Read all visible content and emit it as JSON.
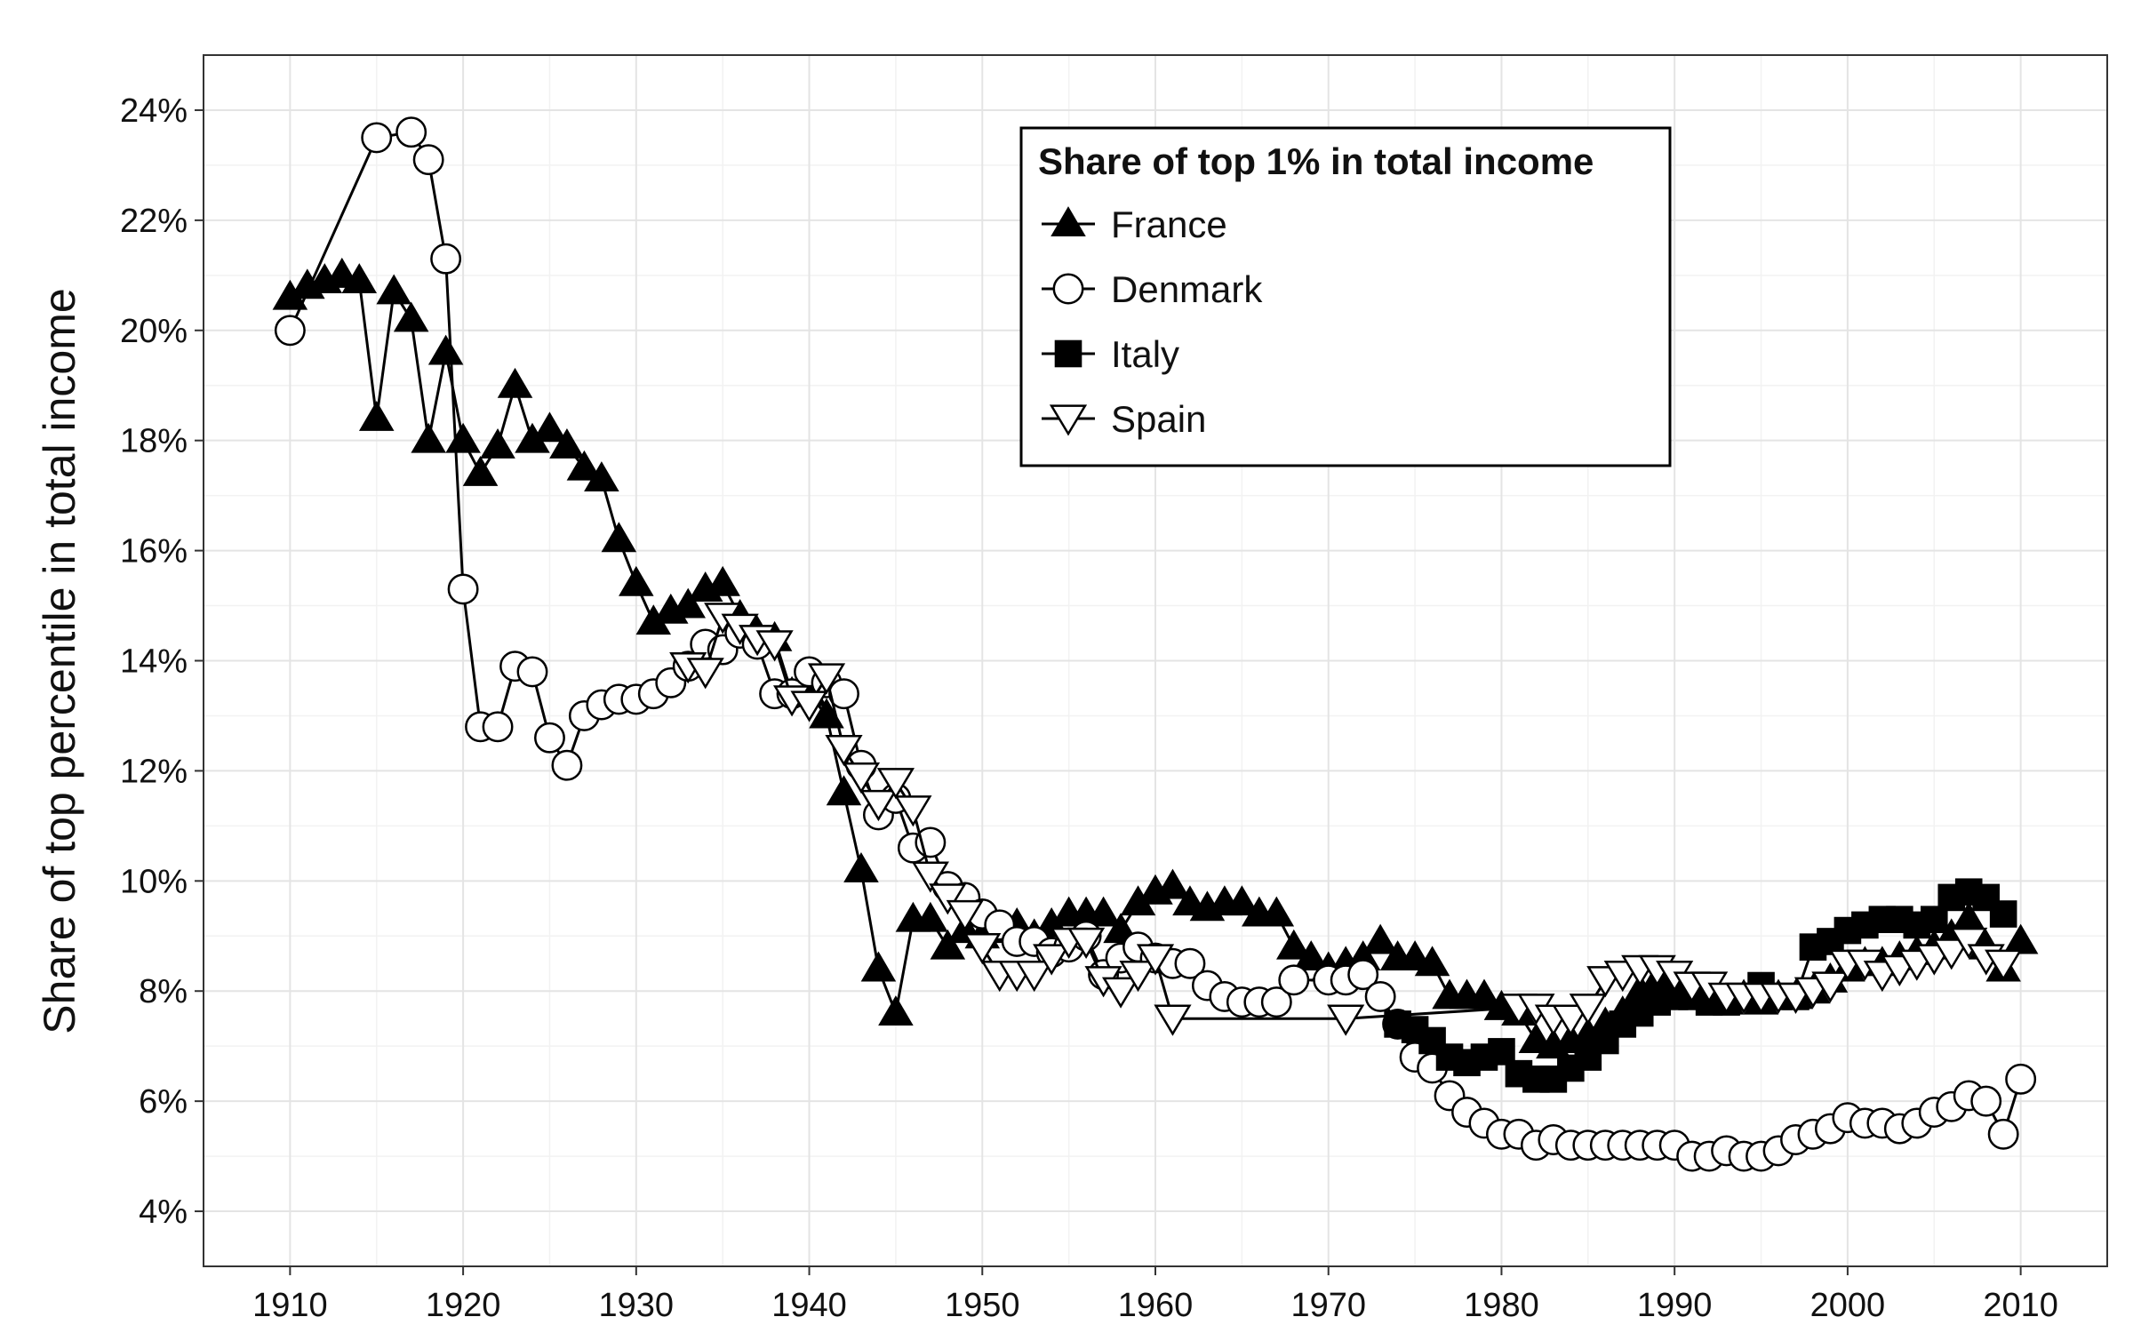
{
  "chart_data": {
    "type": "line",
    "title": "",
    "xlabel": "",
    "ylabel": "Share of top percentile in total income",
    "xlim": [
      1905,
      2015
    ],
    "ylim": [
      3.0,
      25.0
    ],
    "x_ticks": [
      1910,
      1920,
      1930,
      1940,
      1950,
      1960,
      1970,
      1980,
      1990,
      2000,
      2010
    ],
    "y_ticks": [
      4,
      6,
      8,
      10,
      12,
      14,
      16,
      18,
      20,
      22,
      24
    ],
    "y_tick_labels": [
      "4%",
      "6%",
      "8%",
      "10%",
      "12%",
      "14%",
      "16%",
      "18%",
      "20%",
      "22%",
      "24%"
    ],
    "x_tick_labels": [
      "1910",
      "1920",
      "1930",
      "1940",
      "1950",
      "1960",
      "1970",
      "1980",
      "1990",
      "2000",
      "2010"
    ],
    "grid": true,
    "legend": {
      "title": "Share of top 1% in total income",
      "placement": "top-center"
    },
    "series": [
      {
        "name": "France",
        "marker": "triangle-up-filled",
        "points": [
          [
            1910,
            20.6
          ],
          [
            1911,
            20.8
          ],
          [
            1912,
            20.9
          ],
          [
            1913,
            21.0
          ],
          [
            1914,
            20.9
          ],
          [
            1915,
            18.4
          ],
          [
            1916,
            20.7
          ],
          [
            1917,
            20.2
          ],
          [
            1918,
            18.0
          ],
          [
            1919,
            19.6
          ],
          [
            1920,
            18.0
          ],
          [
            1921,
            17.4
          ],
          [
            1922,
            17.9
          ],
          [
            1923,
            19.0
          ],
          [
            1924,
            18.0
          ],
          [
            1925,
            18.2
          ],
          [
            1926,
            17.9
          ],
          [
            1927,
            17.5
          ],
          [
            1928,
            17.3
          ],
          [
            1929,
            16.2
          ],
          [
            1930,
            15.4
          ],
          [
            1931,
            14.7
          ],
          [
            1932,
            14.9
          ],
          [
            1933,
            15.0
          ],
          [
            1934,
            15.3
          ],
          [
            1935,
            15.4
          ],
          [
            1936,
            14.8
          ],
          [
            1937,
            14.5
          ],
          [
            1938,
            14.4
          ],
          [
            1939,
            13.4
          ],
          [
            1940,
            13.4
          ],
          [
            1941,
            13.0
          ],
          [
            1942,
            11.6
          ],
          [
            1943,
            10.2
          ],
          [
            1944,
            8.4
          ],
          [
            1945,
            7.6
          ],
          [
            1946,
            9.3
          ],
          [
            1947,
            9.3
          ],
          [
            1948,
            8.8
          ],
          [
            1949,
            9.1
          ],
          [
            1950,
            9.0
          ],
          [
            1951,
            9.1
          ],
          [
            1952,
            9.2
          ],
          [
            1953,
            9.0
          ],
          [
            1954,
            9.2
          ],
          [
            1955,
            9.4
          ],
          [
            1956,
            9.4
          ],
          [
            1957,
            9.4
          ],
          [
            1958,
            9.1
          ],
          [
            1959,
            9.6
          ],
          [
            1960,
            9.8
          ],
          [
            1961,
            9.9
          ],
          [
            1962,
            9.6
          ],
          [
            1963,
            9.5
          ],
          [
            1964,
            9.6
          ],
          [
            1965,
            9.6
          ],
          [
            1966,
            9.4
          ],
          [
            1967,
            9.4
          ],
          [
            1968,
            8.8
          ],
          [
            1969,
            8.6
          ],
          [
            1970,
            8.4
          ],
          [
            1971,
            8.5
          ],
          [
            1972,
            8.6
          ],
          [
            1973,
            8.9
          ],
          [
            1974,
            8.6
          ],
          [
            1975,
            8.6
          ],
          [
            1976,
            8.5
          ],
          [
            1977,
            7.9
          ],
          [
            1978,
            7.9
          ],
          [
            1979,
            7.9
          ],
          [
            1980,
            7.7
          ],
          [
            1981,
            7.6
          ],
          [
            1982,
            7.1
          ],
          [
            1983,
            7.0
          ],
          [
            1984,
            7.1
          ],
          [
            1985,
            7.2
          ],
          [
            1986,
            7.4
          ],
          [
            1987,
            7.6
          ],
          [
            1988,
            8.0
          ],
          [
            1989,
            8.2
          ],
          [
            1990,
            8.2
          ],
          [
            1991,
            8.0
          ],
          [
            1992,
            7.9
          ],
          [
            1993,
            7.8
          ],
          [
            1994,
            7.9
          ],
          [
            1995,
            7.8
          ],
          [
            1996,
            7.9
          ],
          [
            1997,
            7.9
          ],
          [
            1998,
            8.0
          ],
          [
            1999,
            8.2
          ],
          [
            2000,
            8.4
          ],
          [
            2001,
            8.5
          ],
          [
            2002,
            8.5
          ],
          [
            2003,
            8.6
          ],
          [
            2004,
            8.7
          ],
          [
            2005,
            8.8
          ],
          [
            2006,
            9.0
          ],
          [
            2007,
            9.3
          ],
          [
            2008,
            8.8
          ],
          [
            2009,
            8.4
          ],
          [
            2010,
            8.9
          ]
        ]
      },
      {
        "name": "Denmark",
        "marker": "circle-open",
        "points": [
          [
            1910,
            20.0
          ],
          [
            1915,
            23.5
          ],
          [
            1917,
            23.6
          ],
          [
            1918,
            23.1
          ],
          [
            1919,
            21.3
          ],
          [
            1920,
            15.3
          ],
          [
            1921,
            12.8
          ],
          [
            1922,
            12.8
          ],
          [
            1923,
            13.9
          ],
          [
            1924,
            13.8
          ],
          [
            1925,
            12.6
          ],
          [
            1926,
            12.1
          ],
          [
            1927,
            13.0
          ],
          [
            1928,
            13.2
          ],
          [
            1929,
            13.3
          ],
          [
            1930,
            13.3
          ],
          [
            1931,
            13.4
          ],
          [
            1932,
            13.6
          ],
          [
            1933,
            13.9
          ],
          [
            1934,
            14.3
          ],
          [
            1935,
            14.2
          ],
          [
            1936,
            14.5
          ],
          [
            1937,
            14.3
          ],
          [
            1938,
            13.4
          ],
          [
            1939,
            13.4
          ],
          [
            1940,
            13.8
          ],
          [
            1941,
            13.6
          ],
          [
            1942,
            13.4
          ],
          [
            1943,
            12.1
          ],
          [
            1944,
            11.2
          ],
          [
            1945,
            11.5
          ],
          [
            1946,
            10.6
          ],
          [
            1947,
            10.7
          ],
          [
            1948,
            9.9
          ],
          [
            1949,
            9.7
          ],
          [
            1950,
            9.4
          ],
          [
            1951,
            9.2
          ],
          [
            1952,
            8.9
          ],
          [
            1953,
            8.9
          ],
          [
            1954,
            8.7
          ],
          [
            1955,
            8.8
          ],
          [
            1956,
            9.0
          ],
          [
            1957,
            8.3
          ],
          [
            1958,
            8.6
          ],
          [
            1959,
            8.8
          ],
          [
            1960,
            8.6
          ],
          [
            1961,
            8.5
          ],
          [
            1962,
            8.5
          ],
          [
            1963,
            8.1
          ],
          [
            1964,
            7.9
          ],
          [
            1965,
            7.8
          ],
          [
            1966,
            7.8
          ],
          [
            1967,
            7.8
          ],
          [
            1968,
            8.2
          ],
          [
            1970,
            8.2
          ],
          [
            1971,
            8.2
          ],
          [
            1972,
            8.3
          ],
          [
            1973,
            7.9
          ],
          [
            1974,
            7.4
          ],
          [
            1975,
            6.8
          ],
          [
            1976,
            6.6
          ],
          [
            1977,
            6.1
          ],
          [
            1978,
            5.8
          ],
          [
            1979,
            5.6
          ],
          [
            1980,
            5.4
          ],
          [
            1981,
            5.4
          ],
          [
            1982,
            5.2
          ],
          [
            1983,
            5.3
          ],
          [
            1984,
            5.2
          ],
          [
            1985,
            5.2
          ],
          [
            1986,
            5.2
          ],
          [
            1987,
            5.2
          ],
          [
            1988,
            5.2
          ],
          [
            1989,
            5.2
          ],
          [
            1990,
            5.2
          ],
          [
            1991,
            5.0
          ],
          [
            1992,
            5.0
          ],
          [
            1993,
            5.1
          ],
          [
            1994,
            5.0
          ],
          [
            1995,
            5.0
          ],
          [
            1996,
            5.1
          ],
          [
            1997,
            5.3
          ],
          [
            1998,
            5.4
          ],
          [
            1999,
            5.5
          ],
          [
            2000,
            5.7
          ],
          [
            2001,
            5.6
          ],
          [
            2002,
            5.6
          ],
          [
            2003,
            5.5
          ],
          [
            2004,
            5.6
          ],
          [
            2005,
            5.8
          ],
          [
            2006,
            5.9
          ],
          [
            2007,
            6.1
          ],
          [
            2008,
            6.0
          ],
          [
            2009,
            5.4
          ],
          [
            2010,
            6.4
          ]
        ]
      },
      {
        "name": "Italy",
        "marker": "square-filled",
        "points": [
          [
            1974,
            7.4
          ],
          [
            1975,
            7.3
          ],
          [
            1976,
            7.1
          ],
          [
            1977,
            6.8
          ],
          [
            1978,
            6.7
          ],
          [
            1979,
            6.8
          ],
          [
            1980,
            6.9
          ],
          [
            1981,
            6.5
          ],
          [
            1982,
            6.4
          ],
          [
            1983,
            6.4
          ],
          [
            1984,
            6.6
          ],
          [
            1985,
            6.8
          ],
          [
            1986,
            7.1
          ],
          [
            1987,
            7.4
          ],
          [
            1988,
            7.6
          ],
          [
            1989,
            7.8
          ],
          [
            1990,
            7.9
          ],
          [
            1991,
            7.9
          ],
          [
            1992,
            7.8
          ],
          [
            1993,
            7.8
          ],
          [
            1994,
            7.9
          ],
          [
            1995,
            8.1
          ],
          [
            1996,
            7.9
          ],
          [
            1997,
            7.9
          ],
          [
            1998,
            8.8
          ],
          [
            1999,
            8.9
          ],
          [
            2000,
            9.1
          ],
          [
            2001,
            9.2
          ],
          [
            2002,
            9.3
          ],
          [
            2003,
            9.3
          ],
          [
            2004,
            9.2
          ],
          [
            2005,
            9.3
          ],
          [
            2006,
            9.7
          ],
          [
            2007,
            9.8
          ],
          [
            2008,
            9.7
          ],
          [
            2009,
            9.4
          ]
        ]
      },
      {
        "name": "Spain",
        "marker": "triangle-down-open",
        "points": [
          [
            1933,
            13.9
          ],
          [
            1934,
            13.8
          ],
          [
            1935,
            14.8
          ],
          [
            1936,
            14.6
          ],
          [
            1937,
            14.4
          ],
          [
            1938,
            14.3
          ],
          [
            1939,
            13.3
          ],
          [
            1940,
            13.2
          ],
          [
            1941,
            13.7
          ],
          [
            1942,
            12.4
          ],
          [
            1943,
            11.9
          ],
          [
            1944,
            11.4
          ],
          [
            1945,
            11.8
          ],
          [
            1946,
            11.3
          ],
          [
            1947,
            10.1
          ],
          [
            1948,
            9.7
          ],
          [
            1949,
            9.4
          ],
          [
            1950,
            8.8
          ],
          [
            1951,
            8.3
          ],
          [
            1952,
            8.3
          ],
          [
            1953,
            8.3
          ],
          [
            1954,
            8.6
          ],
          [
            1955,
            8.9
          ],
          [
            1956,
            8.9
          ],
          [
            1957,
            8.2
          ],
          [
            1958,
            8.0
          ],
          [
            1959,
            8.3
          ],
          [
            1960,
            8.6
          ],
          [
            1961,
            7.5
          ],
          [
            1971,
            7.5
          ],
          [
            1981,
            7.7
          ],
          [
            1982,
            7.7
          ],
          [
            1983,
            7.5
          ],
          [
            1984,
            7.5
          ],
          [
            1985,
            7.7
          ],
          [
            1986,
            8.2
          ],
          [
            1987,
            8.3
          ],
          [
            1988,
            8.4
          ],
          [
            1989,
            8.4
          ],
          [
            1990,
            8.3
          ],
          [
            1991,
            8.1
          ],
          [
            1992,
            8.1
          ],
          [
            1993,
            7.9
          ],
          [
            1994,
            7.9
          ],
          [
            1995,
            7.9
          ],
          [
            1996,
            7.9
          ],
          [
            1997,
            7.9
          ],
          [
            1998,
            8.0
          ],
          [
            1999,
            8.1
          ],
          [
            2000,
            8.5
          ],
          [
            2001,
            8.5
          ],
          [
            2002,
            8.3
          ],
          [
            2003,
            8.4
          ],
          [
            2004,
            8.5
          ],
          [
            2005,
            8.6
          ],
          [
            2006,
            8.7
          ],
          [
            2007,
            8.9
          ],
          [
            2008,
            8.6
          ],
          [
            2009,
            8.5
          ]
        ]
      }
    ]
  }
}
